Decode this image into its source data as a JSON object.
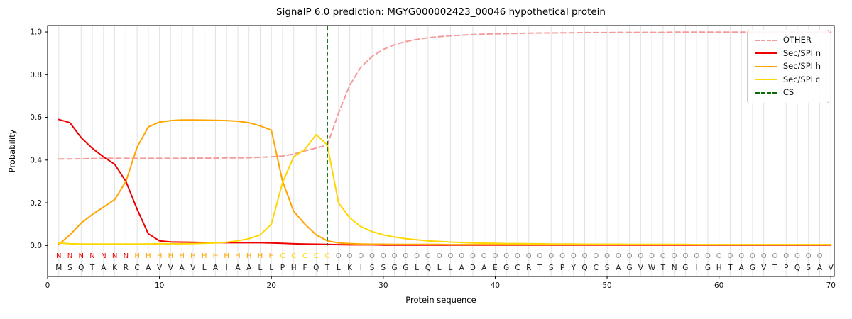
{
  "chart_data": {
    "type": "line",
    "title": "SignalP 6.0 prediction: MGYG000002423_00046 hypothetical protein",
    "xlabel": "Protein sequence",
    "ylabel": "Probability",
    "xlim": [
      0,
      70.3
    ],
    "ylim": [
      -0.145,
      1.03
    ],
    "xticks": [
      0,
      10,
      20,
      30,
      40,
      50,
      60,
      70
    ],
    "yticks": [
      "0.0",
      "0.2",
      "0.4",
      "0.6",
      "0.8",
      "1.0"
    ],
    "grid": "vertical gridline at every residue position",
    "grid_color": "#e2e2e2",
    "legend_position": "upper right",
    "sequence": "MSQTAKRCAVVAVLAIAALLPHFQTLKISSGGLQLLADAEGCRTSPYQCSAGVWTNGIGHTAGVTPQSAV",
    "region_labels": "NNNNNNNHHHHHHHHHHHHHCCCCCOOOOOOOOOOOOOOOOOOOOOOOOOOOOOOOOOOOOOOOOOOOO",
    "region_colors": {
      "N": "#ee0000",
      "H": "#ffa500",
      "C": "#ffd700",
      "O": "#8a8a8a"
    },
    "sequence_color": "#1a1a1a",
    "series": [
      {
        "name": "OTHER",
        "color": "#f59a9a",
        "dash": true,
        "values": [
          0.405,
          0.405,
          0.406,
          0.407,
          0.408,
          0.408,
          0.408,
          0.408,
          0.408,
          0.408,
          0.408,
          0.408,
          0.409,
          0.409,
          0.409,
          0.41,
          0.41,
          0.411,
          0.413,
          0.415,
          0.419,
          0.428,
          0.443,
          0.456,
          0.47,
          0.62,
          0.75,
          0.835,
          0.885,
          0.918,
          0.94,
          0.955,
          0.965,
          0.973,
          0.978,
          0.982,
          0.985,
          0.988,
          0.99,
          0.991,
          0.992,
          0.993,
          0.994,
          0.995,
          0.995,
          0.996,
          0.996,
          0.997,
          0.997,
          0.997,
          0.998,
          0.998,
          0.998,
          0.998,
          0.998,
          0.999,
          0.999,
          0.999,
          0.999,
          0.999,
          0.999,
          0.999,
          0.999,
          0.999,
          0.999,
          0.999,
          0.999,
          0.999,
          0.999,
          0.999
        ]
      },
      {
        "name": "Sec/SPI n",
        "color": "#ee0000",
        "dash": false,
        "values": [
          0.59,
          0.575,
          0.505,
          0.455,
          0.415,
          0.38,
          0.3,
          0.17,
          0.055,
          0.022,
          0.017,
          0.016,
          0.015,
          0.014,
          0.014,
          0.013,
          0.013,
          0.013,
          0.013,
          0.012,
          0.01,
          0.008,
          0.007,
          0.006,
          0.005,
          0.004,
          0.003,
          0.003,
          0.003,
          0.002,
          0.002,
          0.002,
          0.002,
          0.002,
          0.002,
          0.002,
          0.002,
          0.002,
          0.002,
          0.002,
          0.002,
          0.002,
          0.002,
          0.002,
          0.002,
          0.002,
          0.002,
          0.002,
          0.002,
          0.002,
          0.002,
          0.002,
          0.002,
          0.002,
          0.002,
          0.002,
          0.002,
          0.002,
          0.002,
          0.002,
          0.002,
          0.002,
          0.002,
          0.002,
          0.002,
          0.002,
          0.002,
          0.002,
          0.002,
          0.002
        ]
      },
      {
        "name": "Sec/SPI h",
        "color": "#ffa500",
        "dash": false,
        "values": [
          0.005,
          0.05,
          0.105,
          0.145,
          0.18,
          0.215,
          0.3,
          0.46,
          0.555,
          0.578,
          0.585,
          0.588,
          0.588,
          0.587,
          0.586,
          0.585,
          0.582,
          0.575,
          0.56,
          0.54,
          0.3,
          0.16,
          0.1,
          0.05,
          0.022,
          0.012,
          0.009,
          0.007,
          0.006,
          0.006,
          0.005,
          0.005,
          0.005,
          0.005,
          0.005,
          0.004,
          0.004,
          0.004,
          0.004,
          0.004,
          0.004,
          0.004,
          0.004,
          0.004,
          0.004,
          0.004,
          0.004,
          0.004,
          0.004,
          0.004,
          0.004,
          0.004,
          0.004,
          0.004,
          0.004,
          0.004,
          0.004,
          0.004,
          0.004,
          0.004,
          0.004,
          0.004,
          0.004,
          0.004,
          0.004,
          0.004,
          0.004,
          0.004,
          0.004,
          0.004
        ]
      },
      {
        "name": "Sec/SPI c",
        "color": "#ffd700",
        "dash": false,
        "values": [
          0.012,
          0.008,
          0.007,
          0.007,
          0.007,
          0.007,
          0.007,
          0.007,
          0.007,
          0.008,
          0.008,
          0.008,
          0.009,
          0.01,
          0.012,
          0.015,
          0.022,
          0.032,
          0.05,
          0.1,
          0.295,
          0.415,
          0.45,
          0.52,
          0.47,
          0.2,
          0.13,
          0.088,
          0.065,
          0.05,
          0.04,
          0.032,
          0.027,
          0.022,
          0.019,
          0.016,
          0.014,
          0.012,
          0.011,
          0.01,
          0.009,
          0.009,
          0.008,
          0.008,
          0.007,
          0.007,
          0.007,
          0.006,
          0.006,
          0.006,
          0.006,
          0.005,
          0.005,
          0.005,
          0.005,
          0.005,
          0.005,
          0.004,
          0.004,
          0.004,
          0.004,
          0.004,
          0.004,
          0.004,
          0.004,
          0.004,
          0.004,
          0.004,
          0.004,
          0.004
        ]
      }
    ],
    "cs": {
      "name": "CS",
      "position": 25,
      "color": "#0a6e0a",
      "dash": true
    }
  }
}
